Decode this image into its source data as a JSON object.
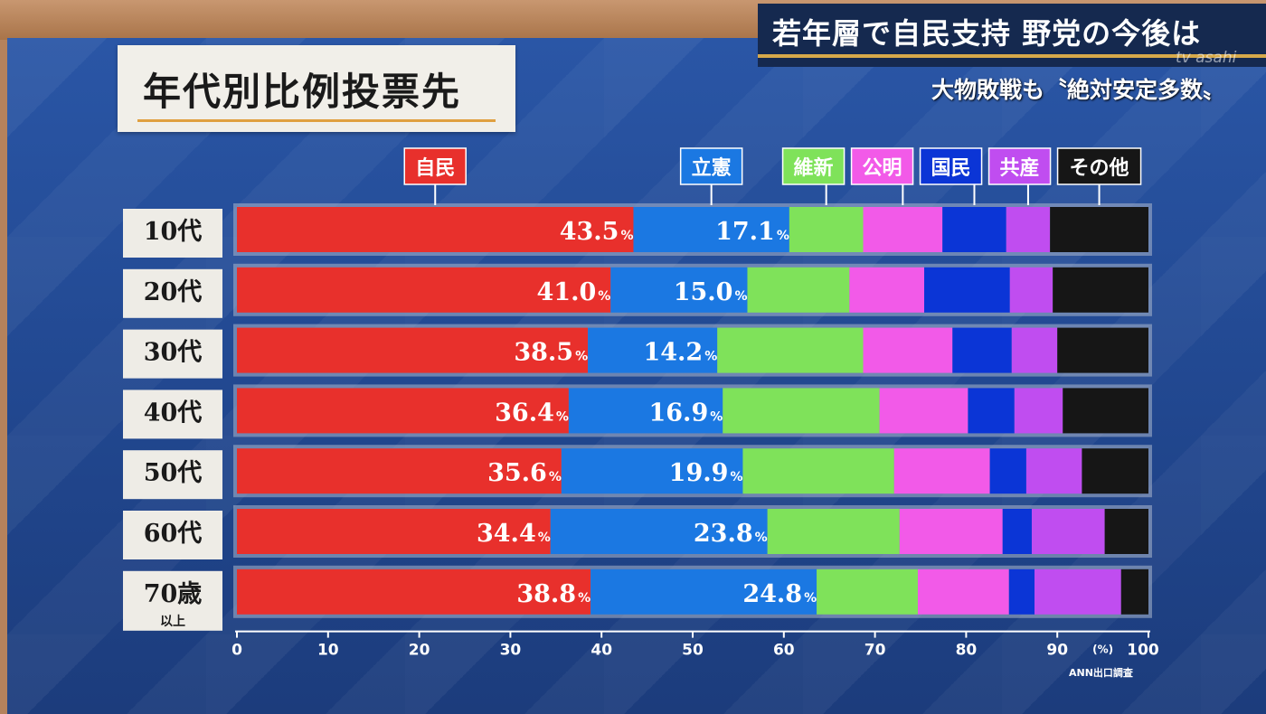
{
  "headline": {
    "title": "若年層で自民支持 野党の今後は",
    "subtitle": "大物敗戦も〝絶対安定多数〟",
    "channel": "tv asahi"
  },
  "source_note": "ANN出口調査",
  "chart_data": {
    "type": "bar",
    "orientation": "horizontal",
    "stacked": true,
    "title": "年代別比例投票先",
    "xlabel": "(%)",
    "xlim": [
      0,
      100
    ],
    "x_ticks": [
      "0",
      "10",
      "20",
      "30",
      "40",
      "50",
      "60",
      "70",
      "80",
      "90",
      "100"
    ],
    "categories": [
      {
        "label": "10代",
        "sub": ""
      },
      {
        "label": "20代",
        "sub": ""
      },
      {
        "label": "30代",
        "sub": ""
      },
      {
        "label": "40代",
        "sub": ""
      },
      {
        "label": "50代",
        "sub": ""
      },
      {
        "label": "60代",
        "sub": ""
      },
      {
        "label": "70歳",
        "sub": "以上"
      }
    ],
    "legend_placement": "top",
    "grid": false,
    "series": [
      {
        "name": "自民",
        "color": "#e8302c",
        "values": [
          43.5,
          41.0,
          38.5,
          36.4,
          35.6,
          34.4,
          38.8
        ],
        "labels": [
          "43.5",
          "41.0",
          "38.5",
          "36.4",
          "35.6",
          "34.4",
          "38.8"
        ]
      },
      {
        "name": "立憲",
        "color": "#1b78e2",
        "values": [
          17.1,
          15.0,
          14.2,
          16.9,
          19.9,
          23.8,
          24.8
        ],
        "labels": [
          "17.1",
          "15.0",
          "14.2",
          "16.9",
          "19.9",
          "23.8",
          "24.8"
        ]
      },
      {
        "name": "維新",
        "color": "#7fe25a",
        "values": [
          8.1,
          11.2,
          16.0,
          17.2,
          16.6,
          14.5,
          11.1
        ]
      },
      {
        "name": "公明",
        "color": "#f25ae8",
        "values": [
          8.7,
          8.2,
          9.8,
          9.7,
          10.5,
          11.3,
          10.0
        ]
      },
      {
        "name": "国民",
        "color": "#0b35d6",
        "values": [
          7.0,
          9.4,
          6.5,
          5.1,
          4.0,
          3.2,
          2.8
        ]
      },
      {
        "name": "共産",
        "color": "#c04df0",
        "values": [
          4.8,
          4.7,
          5.0,
          5.3,
          6.1,
          8.0,
          9.5
        ]
      },
      {
        "name": "その他",
        "color": "#161616",
        "values": [
          10.8,
          10.5,
          10.0,
          9.4,
          7.3,
          4.8,
          3.0
        ]
      }
    ],
    "percent_suffix": "%"
  }
}
